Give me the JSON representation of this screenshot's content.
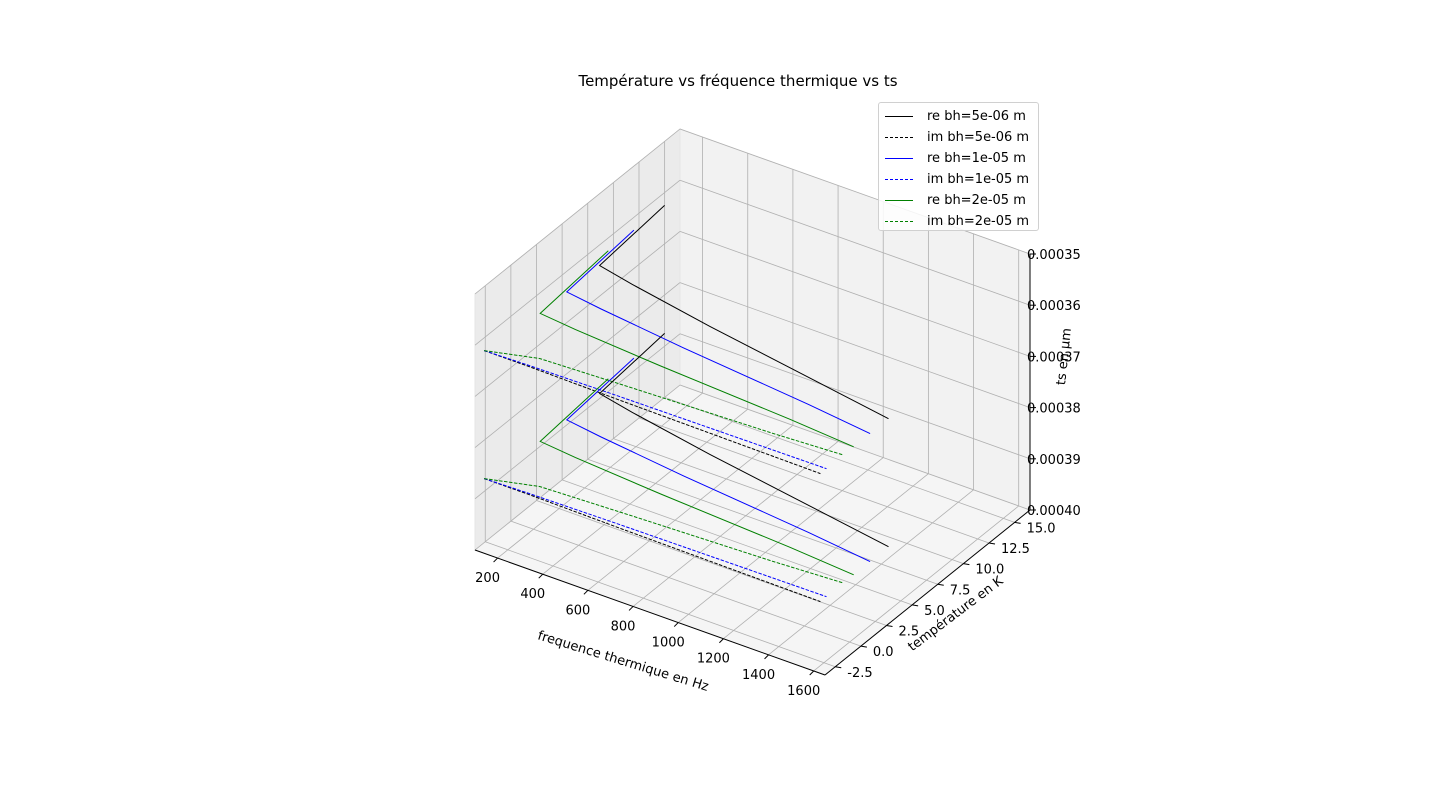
{
  "chart_data": {
    "type": "line",
    "title": "Température vs fréquence thermique vs ts",
    "xlabel": "frequence thermique en Hz",
    "ylabel": "température en K",
    "zlabel": "ts en µm",
    "xlim": [
      100,
      1650
    ],
    "ylim": [
      -3.5,
      16.5
    ],
    "zlim": [
      0.0004,
      0.00035
    ],
    "x_ticks": [
      "200",
      "400",
      "600",
      "800",
      "1000",
      "1200",
      "1400",
      "1600"
    ],
    "y_ticks": [
      "-2.5",
      "0.0",
      "2.5",
      "5.0",
      "7.5",
      "10.0",
      "12.5",
      "15.0"
    ],
    "z_ticks": [
      "0.00035",
      "0.00036",
      "0.00037",
      "0.00038",
      "0.00039",
      "0.00040"
    ],
    "grid": true,
    "legend_position": "top-right",
    "series": [
      {
        "name": "re bh=5e-06 m",
        "color": "#000000",
        "dashed": false,
        "z": 0.0003625,
        "x": [
          100,
          130,
          300,
          700,
          1300,
          1600
        ],
        "y": [
          15.0,
          8.0,
          7.4,
          6.2,
          4.6,
          3.8
        ]
      },
      {
        "name": "im bh=5e-06 m",
        "color": "#000000",
        "dashed": true,
        "z": 0.0003625,
        "x": [
          100,
          300,
          700,
          1300,
          1600
        ],
        "y": [
          -2.6,
          -2.6,
          -2.7,
          -2.8,
          -2.85
        ]
      },
      {
        "name": "re bh=1e-05 m",
        "color": "#0000ff",
        "dashed": false,
        "z": 0.0003625,
        "x": [
          100,
          130,
          300,
          700,
          1300,
          1600
        ],
        "y": [
          12.0,
          4.8,
          4.4,
          3.6,
          2.6,
          2.0
        ]
      },
      {
        "name": "im bh=1e-05 m",
        "color": "#0000ff",
        "dashed": true,
        "z": 0.0003625,
        "x": [
          100,
          300,
          700,
          1300,
          1600
        ],
        "y": [
          -2.6,
          -2.5,
          -2.4,
          -2.3,
          -2.25
        ]
      },
      {
        "name": "re bh=2e-05 m",
        "color": "#008000",
        "dashed": false,
        "z": 0.0003625,
        "x": [
          100,
          130,
          300,
          700,
          1300,
          1600
        ],
        "y": [
          9.5,
          2.2,
          1.9,
          1.4,
          0.8,
          0.4
        ]
      },
      {
        "name": "im bh=2e-05 m",
        "color": "#008000",
        "dashed": true,
        "z": 0.0003625,
        "x": [
          100,
          300,
          700,
          1300,
          1600
        ],
        "y": [
          -2.6,
          -1.6,
          -1.3,
          -0.9,
          -0.6
        ]
      },
      {
        "name": "re bh=5e-06 m",
        "color": "#000000",
        "dashed": false,
        "z": 0.0003875,
        "x": [
          100,
          130,
          300,
          700,
          1300,
          1600
        ],
        "y": [
          15.0,
          8.0,
          7.4,
          6.2,
          4.6,
          3.8
        ]
      },
      {
        "name": "im bh=5e-06 m",
        "color": "#000000",
        "dashed": true,
        "z": 0.0003875,
        "x": [
          100,
          300,
          700,
          1300,
          1600
        ],
        "y": [
          -2.6,
          -2.6,
          -2.7,
          -2.8,
          -2.85
        ]
      },
      {
        "name": "re bh=1e-05 m",
        "color": "#0000ff",
        "dashed": false,
        "z": 0.0003875,
        "x": [
          100,
          130,
          300,
          700,
          1300,
          1600
        ],
        "y": [
          12.0,
          4.8,
          4.4,
          3.6,
          2.6,
          2.0
        ]
      },
      {
        "name": "im bh=1e-05 m",
        "color": "#0000ff",
        "dashed": true,
        "z": 0.0003875,
        "x": [
          100,
          300,
          700,
          1300,
          1600
        ],
        "y": [
          -2.6,
          -2.5,
          -2.4,
          -2.3,
          -2.25
        ]
      },
      {
        "name": "re bh=2e-05 m",
        "color": "#008000",
        "dashed": false,
        "z": 0.0003875,
        "x": [
          100,
          130,
          300,
          700,
          1300,
          1600
        ],
        "y": [
          9.5,
          2.2,
          1.9,
          1.4,
          0.8,
          0.4
        ]
      },
      {
        "name": "im bh=2e-05 m",
        "color": "#008000",
        "dashed": true,
        "z": 0.0003875,
        "x": [
          100,
          300,
          700,
          1300,
          1600
        ],
        "y": [
          -2.6,
          -1.6,
          -1.3,
          -0.9,
          -0.6
        ]
      }
    ],
    "legend": [
      {
        "label": "re bh=5e-06 m",
        "color": "#000000",
        "dashed": false
      },
      {
        "label": "im bh=5e-06 m",
        "color": "#000000",
        "dashed": true
      },
      {
        "label": "re bh=1e-05 m",
        "color": "#0000ff",
        "dashed": false
      },
      {
        "label": "im bh=1e-05 m",
        "color": "#0000ff",
        "dashed": true
      },
      {
        "label": "re bh=2e-05 m",
        "color": "#008000",
        "dashed": false
      },
      {
        "label": "im bh=2e-05 m",
        "color": "#008000",
        "dashed": true
      }
    ]
  }
}
